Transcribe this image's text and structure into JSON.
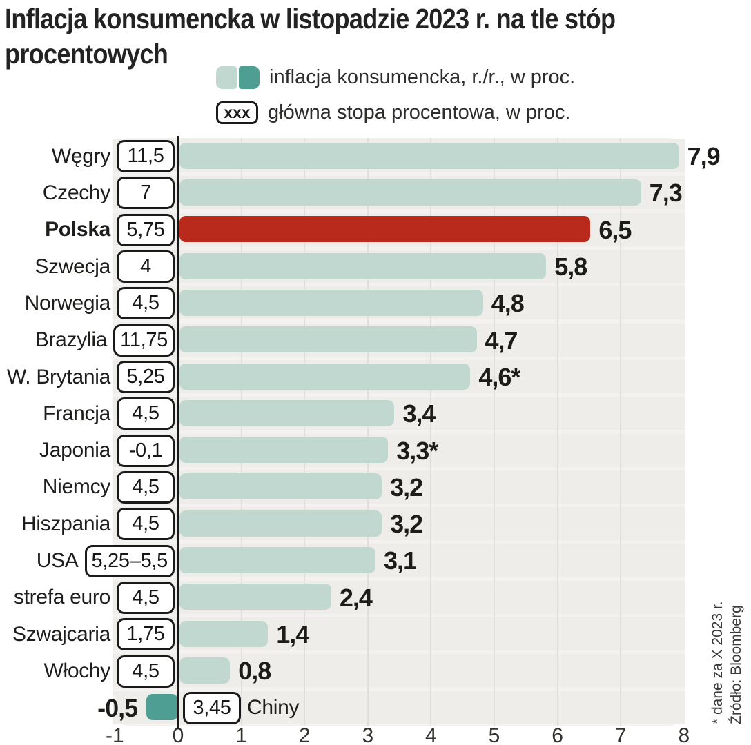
{
  "title": {
    "line1": "Inflacja konsumencka w listopadzie 2023 r. na tle stóp",
    "line2": "procentowych"
  },
  "legend": {
    "items": [
      {
        "swatches": [
          "inflation-light",
          "inflation-dark"
        ],
        "label": "inflacja konsumencka, r./r., w proc."
      },
      {
        "symbol": "xxx",
        "label": "główna stopa procentowa, w proc."
      }
    ]
  },
  "chart_data": {
    "type": "bar",
    "orientation": "horizontal",
    "title": "Inflacja konsumencka w listopadzie 2023 r. na tle stóp procentowych",
    "x_axis": {
      "min": -1,
      "max": 8,
      "ticks": [
        "-1",
        "0",
        "1",
        "2",
        "3",
        "4",
        "5",
        "6",
        "7",
        "8"
      ],
      "grid": true
    },
    "series_names": [
      "inflacja konsumencka, r./r., w proc.",
      "główna stopa procentowa, w proc."
    ],
    "rows": [
      {
        "country": "Węgry",
        "policy_rate": "11,5",
        "inflation": 7.9,
        "inflation_label": "7,9"
      },
      {
        "country": "Czechy",
        "policy_rate": "7",
        "inflation": 7.3,
        "inflation_label": "7,3"
      },
      {
        "country": "Polska",
        "policy_rate": "5,75",
        "inflation": 6.5,
        "inflation_label": "6,5",
        "highlight": true
      },
      {
        "country": "Szwecja",
        "policy_rate": "4",
        "inflation": 5.8,
        "inflation_label": "5,8"
      },
      {
        "country": "Norwegia",
        "policy_rate": "4,5",
        "inflation": 4.8,
        "inflation_label": "4,8"
      },
      {
        "country": "Brazylia",
        "policy_rate": "11,75",
        "inflation": 4.7,
        "inflation_label": "4,7"
      },
      {
        "country": "W. Brytania",
        "policy_rate": "5,25",
        "inflation": 4.6,
        "inflation_label": "4,6*"
      },
      {
        "country": "Francja",
        "policy_rate": "4,5",
        "inflation": 3.4,
        "inflation_label": "3,4"
      },
      {
        "country": "Japonia",
        "policy_rate": "-0,1",
        "inflation": 3.3,
        "inflation_label": "3,3*"
      },
      {
        "country": "Niemcy",
        "policy_rate": "4,5",
        "inflation": 3.2,
        "inflation_label": "3,2"
      },
      {
        "country": "Hiszpania",
        "policy_rate": "4,5",
        "inflation": 3.2,
        "inflation_label": "3,2"
      },
      {
        "country": "USA",
        "policy_rate": "5,25–5,5",
        "inflation": 3.1,
        "inflation_label": "3,1"
      },
      {
        "country": "strefa euro",
        "policy_rate": "4,5",
        "inflation": 2.4,
        "inflation_label": "2,4"
      },
      {
        "country": "Szwajcaria",
        "policy_rate": "1,75",
        "inflation": 1.4,
        "inflation_label": "1,4"
      },
      {
        "country": "Włochy",
        "policy_rate": "4,5",
        "inflation": 0.8,
        "inflation_label": "0,8"
      },
      {
        "country": "Chiny",
        "policy_rate": "3,45",
        "inflation": -0.5,
        "inflation_label": "-0,5",
        "label_side": "right"
      }
    ],
    "colors": {
      "bar": "#c1d8d1",
      "bar_negative": "#4f9e93",
      "bar_highlight": "#ba2a1c",
      "plot_background": "#f3f2f0",
      "row_band": "#eeedea",
      "gridline": "#e0dfdc",
      "axis": "#1a1a1a"
    },
    "legend_position": "top"
  },
  "footnote": {
    "line1": "* dane za X 2023 r.",
    "line2": "Źródło: Bloomberg"
  }
}
